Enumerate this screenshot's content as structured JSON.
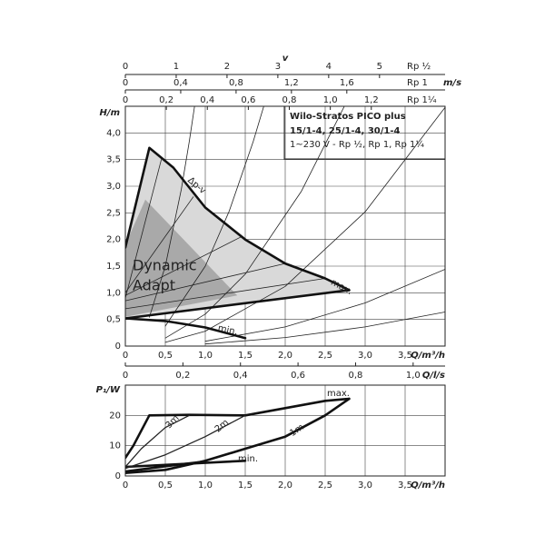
{
  "chart_data": [
    {
      "type": "line",
      "xlabel": "Q/m³/h",
      "ylabel": "H/m",
      "info": [
        "Wilo-Stratos PICO plus",
        "15/1-4, 25/1-4, 30/1-4",
        "1~230 V - Rp ½, Rp 1, Rp 1¼"
      ],
      "annotations": [
        "Δp-v",
        "max.",
        "min.",
        "Dynamic",
        "Adapt"
      ],
      "xlim": [
        0,
        4
      ],
      "ylim": [
        0,
        4.5
      ],
      "grid": true,
      "xticks": [
        0,
        {
          "value": 0.5,
          "label": "0,5"
        },
        {
          "value": 1.0,
          "label": "1,0"
        },
        {
          "value": 1.5,
          "label": "1,5"
        },
        {
          "value": 2.0,
          "label": "2,0"
        },
        {
          "value": 2.5,
          "label": "2,5"
        },
        {
          "value": 3.0,
          "label": "3,0"
        },
        {
          "value": 3.5,
          "label": "3,5"
        }
      ],
      "yticks": [
        0,
        {
          "value": 0.5,
          "label": "0,5"
        },
        {
          "value": 1.0,
          "label": "1,0"
        },
        {
          "value": 1.5,
          "label": "1,5"
        },
        {
          "value": 2.0,
          "label": "2,0"
        },
        {
          "value": 2.5,
          "label": "2,5"
        },
        {
          "value": 3.0,
          "label": "3,0"
        },
        {
          "value": 3.5,
          "label": "3,5"
        },
        {
          "value": 4.0,
          "label": "4,0"
        }
      ],
      "velocity_label": "v",
      "velocity_axes": [
        {
          "label": "Rp ½",
          "xlim": [
            0,
            6.29
          ],
          "xticks": [
            0,
            1,
            2,
            3,
            4,
            5
          ]
        },
        {
          "label": "Rp 1",
          "unit": "m/s",
          "xlim": [
            0,
            2.31
          ],
          "xticks": [
            0,
            {
              "value": 0.4,
              "label": "0,4"
            },
            {
              "value": 0.8,
              "label": "0,8"
            },
            {
              "value": 1.2,
              "label": "1,2"
            },
            {
              "value": 1.6,
              "label": "1,6"
            }
          ]
        },
        {
          "label": "Rp 1¼",
          "xlim": [
            0,
            1.56
          ],
          "xticks": [
            0,
            {
              "value": 0.2,
              "label": "0,2"
            },
            {
              "value": 0.4,
              "label": "0,4"
            },
            {
              "value": 0.6,
              "label": "0,6"
            },
            {
              "value": 0.8,
              "label": "0,8"
            },
            {
              "value": 1.0,
              "label": "1,0"
            },
            {
              "value": 1.2,
              "label": "1,2"
            }
          ]
        }
      ],
      "flow_axis": {
        "label": "Q/l/s",
        "xlim": [
          0,
          1.111
        ],
        "xticks": [
          0,
          {
            "value": 0.2,
            "label": "0,2"
          },
          {
            "value": 0.4,
            "label": "0,4"
          },
          {
            "value": 0.6,
            "label": "0,6"
          },
          {
            "value": 0.8,
            "label": "0,8"
          },
          {
            "value": 1.0,
            "label": "1,0"
          }
        ]
      },
      "series": [
        {
          "fill": "#d9d9d9",
          "x": [
            0,
            0.3,
            0.6,
            1.0,
            1.5,
            2.0,
            2.5,
            2.8,
            0
          ],
          "values": [
            1.85,
            3.72,
            3.35,
            2.6,
            2.0,
            1.55,
            1.27,
            1.05,
            0.52
          ]
        },
        {
          "fill": "#a9a9a9",
          "x": [
            0,
            0.25,
            1.4,
            0
          ],
          "values": [
            1.9,
            2.75,
            0.95,
            0.55
          ]
        },
        {
          "color": "#222",
          "width": 0.8,
          "x": [
            0,
            0.45
          ],
          "values": [
            0.9,
            3.5
          ]
        },
        {
          "color": "#222",
          "width": 0.8,
          "x": [
            0,
            0.85
          ],
          "values": [
            1.0,
            2.8
          ]
        },
        {
          "color": "#222",
          "width": 0.8,
          "x": [
            0,
            1.45
          ],
          "values": [
            0.95,
            2.05
          ]
        },
        {
          "color": "#222",
          "width": 0.8,
          "x": [
            0,
            2.0
          ],
          "values": [
            0.85,
            1.55
          ]
        },
        {
          "color": "#222",
          "width": 0.8,
          "x": [
            0,
            2.5
          ],
          "values": [
            0.7,
            1.27
          ]
        },
        {
          "color": "#222",
          "width": 0.8,
          "x": [
            0.3,
            0.5,
            0.7,
            0.8,
            0.866
          ],
          "values": [
            0.54,
            1.5,
            2.94,
            3.84,
            4.5
          ]
        },
        {
          "color": "#222",
          "width": 0.8,
          "x": [
            0.5,
            1,
            1.3,
            1.6,
            1.73
          ],
          "values": [
            0.375,
            1.5,
            2.535,
            3.84,
            4.49
          ]
        },
        {
          "color": "#222",
          "width": 0.8,
          "x": [
            0.5,
            1,
            1.5,
            2.2,
            2.74
          ],
          "values": [
            0.15,
            0.6,
            1.35,
            2.9,
            4.5
          ]
        },
        {
          "color": "#222",
          "width": 0.8,
          "x": [
            0.5,
            1,
            2,
            3,
            4
          ],
          "values": [
            0.07,
            0.28,
            1.12,
            2.52,
            4.48
          ]
        },
        {
          "color": "#222",
          "width": 0.8,
          "x": [
            1,
            2,
            3,
            4
          ],
          "values": [
            0.09,
            0.36,
            0.81,
            1.44
          ]
        },
        {
          "color": "#222",
          "width": 0.8,
          "x": [
            1,
            2,
            3,
            4
          ],
          "values": [
            0.04,
            0.16,
            0.36,
            0.64
          ]
        },
        {
          "color": "#111",
          "width": 2.6,
          "x": [
            0,
            0.3,
            0.6,
            1.0,
            1.5,
            2.0,
            2.5,
            2.8
          ],
          "values": [
            1.85,
            3.72,
            3.35,
            2.6,
            2.0,
            1.55,
            1.27,
            1.05
          ]
        },
        {
          "color": "#111",
          "width": 2.6,
          "x": [
            0,
            2.8
          ],
          "values": [
            0.52,
            1.05
          ]
        },
        {
          "color": "#111",
          "width": 2.6,
          "x": [
            0,
            0.5,
            1.0,
            1.5
          ],
          "values": [
            0.52,
            0.47,
            0.35,
            0.15
          ]
        }
      ]
    },
    {
      "type": "line",
      "xlabel": "Q/m³/h",
      "ylabel": "P₁/W",
      "annotations": [
        "max.",
        "min.",
        "3m",
        "2m",
        "1m"
      ],
      "xlim": [
        0,
        4
      ],
      "ylim": [
        0,
        30
      ],
      "grid": true,
      "xticks": [
        0,
        {
          "value": 0.5,
          "label": "0,5"
        },
        {
          "value": 1.0,
          "label": "1,0"
        },
        {
          "value": 1.5,
          "label": "1,5"
        },
        {
          "value": 2.0,
          "label": "2,0"
        },
        {
          "value": 2.5,
          "label": "2,5"
        },
        {
          "value": 3.0,
          "label": "3,0"
        },
        {
          "value": 3.5,
          "label": "3,5"
        }
      ],
      "yticks": [
        0,
        10,
        20
      ],
      "series": [
        {
          "color": "#111",
          "width": 2.6,
          "x": [
            0,
            0.1,
            0.3,
            0.8,
            1.5,
            2.5,
            2.8
          ],
          "values": [
            6,
            10,
            20,
            20.2,
            20,
            24.8,
            25.5
          ]
        },
        {
          "color": "#111",
          "width": 2.6,
          "x": [
            0,
            1.5
          ],
          "values": [
            3,
            5
          ]
        },
        {
          "color": "#111",
          "width": 2.6,
          "x": [
            0,
            0.5,
            1.0,
            1.5,
            2.0,
            2.5,
            2.8
          ],
          "values": [
            1,
            2,
            5,
            9,
            13,
            20,
            25.5
          ]
        },
        {
          "color": "#111",
          "width": 2.6,
          "x": [
            0,
            0.5,
            1.0
          ],
          "values": [
            1.5,
            3.2,
            4.8
          ]
        },
        {
          "color": "#222",
          "width": 1.3,
          "x": [
            0,
            0.2,
            0.5,
            0.8
          ],
          "values": [
            3,
            9,
            16,
            20
          ]
        },
        {
          "color": "#222",
          "width": 1.3,
          "x": [
            0,
            0.5,
            1.0,
            1.5
          ],
          "values": [
            2.5,
            7,
            13,
            20
          ]
        }
      ]
    }
  ]
}
